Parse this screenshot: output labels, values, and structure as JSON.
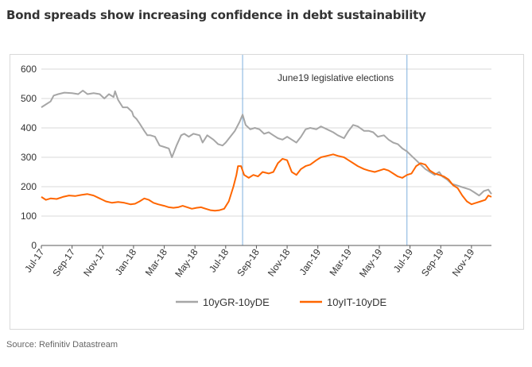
{
  "title": "Bond spreads show increasing confidence in debt sustainability",
  "source": "Source: Refinitiv Datastream",
  "chart_data": {
    "type": "line",
    "title": "Bond spreads show increasing confidence in debt sustainability",
    "xlabel": "",
    "ylabel": "",
    "ylim": [
      0,
      600
    ],
    "yticks": [
      0,
      100,
      200,
      300,
      400,
      500,
      600
    ],
    "x_ticks": [
      "Jul-17",
      "Sep-17",
      "Nov-17",
      "Jan-18",
      "Mar-18",
      "May-18",
      "Jul-18",
      "Sep-18",
      "Nov-18",
      "Jan-19",
      "Mar-19",
      "May-19",
      "Jul-19",
      "Sep-19",
      "Nov-19"
    ],
    "x_range_months": [
      0,
      29.3
    ],
    "grid": "horizontal",
    "legend_position": "bottom",
    "annotation": {
      "text": "June19 legislative elections"
    },
    "vlines_months": [
      13.1,
      23.8
    ],
    "series": [
      {
        "name": "10yGR-10yDE",
        "color": "#a6a6a6",
        "points": [
          [
            0,
            470
          ],
          [
            0.3,
            480
          ],
          [
            0.6,
            490
          ],
          [
            0.8,
            510
          ],
          [
            1.1,
            515
          ],
          [
            1.5,
            520
          ],
          [
            2.0,
            518
          ],
          [
            2.4,
            515
          ],
          [
            2.7,
            527
          ],
          [
            3.0,
            515
          ],
          [
            3.4,
            518
          ],
          [
            3.8,
            515
          ],
          [
            4.1,
            500
          ],
          [
            4.4,
            515
          ],
          [
            4.7,
            505
          ],
          [
            4.8,
            525
          ],
          [
            5.0,
            495
          ],
          [
            5.3,
            470
          ],
          [
            5.6,
            470
          ],
          [
            5.9,
            455
          ],
          [
            6.0,
            440
          ],
          [
            6.2,
            430
          ],
          [
            6.4,
            415
          ],
          [
            6.7,
            390
          ],
          [
            6.9,
            375
          ],
          [
            7.1,
            375
          ],
          [
            7.4,
            370
          ],
          [
            7.7,
            340
          ],
          [
            8.0,
            335
          ],
          [
            8.3,
            330
          ],
          [
            8.5,
            300
          ],
          [
            8.8,
            340
          ],
          [
            9.1,
            375
          ],
          [
            9.3,
            380
          ],
          [
            9.6,
            370
          ],
          [
            9.9,
            380
          ],
          [
            10.3,
            375
          ],
          [
            10.5,
            350
          ],
          [
            10.8,
            375
          ],
          [
            11.2,
            360
          ],
          [
            11.5,
            345
          ],
          [
            11.8,
            340
          ],
          [
            12.0,
            350
          ],
          [
            12.3,
            370
          ],
          [
            12.6,
            390
          ],
          [
            12.9,
            420
          ],
          [
            13.1,
            445
          ],
          [
            13.3,
            410
          ],
          [
            13.6,
            395
          ],
          [
            13.9,
            400
          ],
          [
            14.2,
            395
          ],
          [
            14.5,
            380
          ],
          [
            14.8,
            385
          ],
          [
            15.1,
            375
          ],
          [
            15.4,
            365
          ],
          [
            15.7,
            360
          ],
          [
            16.0,
            370
          ],
          [
            16.3,
            360
          ],
          [
            16.6,
            350
          ],
          [
            16.9,
            370
          ],
          [
            17.2,
            395
          ],
          [
            17.5,
            400
          ],
          [
            17.9,
            395
          ],
          [
            18.2,
            405
          ],
          [
            18.6,
            395
          ],
          [
            19.0,
            385
          ],
          [
            19.3,
            375
          ],
          [
            19.7,
            365
          ],
          [
            20.0,
            390
          ],
          [
            20.3,
            410
          ],
          [
            20.6,
            405
          ],
          [
            21.0,
            390
          ],
          [
            21.3,
            390
          ],
          [
            21.6,
            385
          ],
          [
            21.9,
            370
          ],
          [
            22.3,
            375
          ],
          [
            22.6,
            360
          ],
          [
            22.9,
            350
          ],
          [
            23.2,
            345
          ],
          [
            23.5,
            330
          ],
          [
            23.8,
            320
          ],
          [
            24.1,
            305
          ],
          [
            24.4,
            290
          ],
          [
            24.7,
            275
          ],
          [
            25.0,
            260
          ],
          [
            25.3,
            250
          ],
          [
            25.6,
            240
          ],
          [
            25.9,
            250
          ],
          [
            26.1,
            235
          ],
          [
            26.4,
            225
          ],
          [
            26.7,
            210
          ],
          [
            27.0,
            205
          ],
          [
            27.3,
            200
          ],
          [
            27.6,
            195
          ],
          [
            27.9,
            190
          ],
          [
            28.2,
            180
          ],
          [
            28.5,
            170
          ],
          [
            28.8,
            185
          ],
          [
            29.1,
            190
          ],
          [
            29.3,
            175
          ]
        ]
      },
      {
        "name": "10yIT-10yDE",
        "color": "#ff6600",
        "points": [
          [
            0,
            165
          ],
          [
            0.3,
            155
          ],
          [
            0.6,
            160
          ],
          [
            1.0,
            158
          ],
          [
            1.4,
            165
          ],
          [
            1.8,
            170
          ],
          [
            2.2,
            168
          ],
          [
            2.6,
            172
          ],
          [
            3.0,
            175
          ],
          [
            3.4,
            170
          ],
          [
            3.8,
            160
          ],
          [
            4.2,
            150
          ],
          [
            4.6,
            145
          ],
          [
            5.0,
            148
          ],
          [
            5.4,
            145
          ],
          [
            5.8,
            140
          ],
          [
            6.1,
            142
          ],
          [
            6.4,
            150
          ],
          [
            6.7,
            160
          ],
          [
            7.0,
            155
          ],
          [
            7.3,
            145
          ],
          [
            7.6,
            140
          ],
          [
            8.0,
            135
          ],
          [
            8.3,
            130
          ],
          [
            8.6,
            128
          ],
          [
            8.9,
            130
          ],
          [
            9.2,
            135
          ],
          [
            9.5,
            130
          ],
          [
            9.8,
            125
          ],
          [
            10.1,
            128
          ],
          [
            10.4,
            130
          ],
          [
            10.7,
            125
          ],
          [
            11.0,
            120
          ],
          [
            11.3,
            118
          ],
          [
            11.6,
            120
          ],
          [
            11.9,
            125
          ],
          [
            12.2,
            150
          ],
          [
            12.5,
            200
          ],
          [
            12.7,
            240
          ],
          [
            12.8,
            270
          ],
          [
            13.0,
            270
          ],
          [
            13.2,
            240
          ],
          [
            13.5,
            230
          ],
          [
            13.8,
            240
          ],
          [
            14.1,
            235
          ],
          [
            14.4,
            250
          ],
          [
            14.8,
            245
          ],
          [
            15.1,
            250
          ],
          [
            15.4,
            280
          ],
          [
            15.7,
            295
          ],
          [
            16.0,
            290
          ],
          [
            16.3,
            250
          ],
          [
            16.6,
            240
          ],
          [
            16.9,
            260
          ],
          [
            17.2,
            270
          ],
          [
            17.5,
            275
          ],
          [
            17.9,
            290
          ],
          [
            18.2,
            300
          ],
          [
            18.6,
            305
          ],
          [
            19.0,
            310
          ],
          [
            19.3,
            305
          ],
          [
            19.7,
            300
          ],
          [
            20.0,
            290
          ],
          [
            20.3,
            280
          ],
          [
            20.6,
            270
          ],
          [
            21.0,
            260
          ],
          [
            21.3,
            255
          ],
          [
            21.7,
            250
          ],
          [
            22.0,
            255
          ],
          [
            22.3,
            260
          ],
          [
            22.6,
            255
          ],
          [
            22.9,
            245
          ],
          [
            23.2,
            235
          ],
          [
            23.5,
            230
          ],
          [
            23.8,
            240
          ],
          [
            24.1,
            245
          ],
          [
            24.4,
            270
          ],
          [
            24.7,
            280
          ],
          [
            25.0,
            275
          ],
          [
            25.3,
            255
          ],
          [
            25.6,
            245
          ],
          [
            25.9,
            240
          ],
          [
            26.2,
            235
          ],
          [
            26.5,
            225
          ],
          [
            26.8,
            205
          ],
          [
            27.1,
            195
          ],
          [
            27.4,
            170
          ],
          [
            27.7,
            150
          ],
          [
            28.0,
            140
          ],
          [
            28.3,
            145
          ],
          [
            28.6,
            150
          ],
          [
            28.9,
            155
          ],
          [
            29.1,
            170
          ],
          [
            29.3,
            165
          ]
        ]
      }
    ]
  }
}
